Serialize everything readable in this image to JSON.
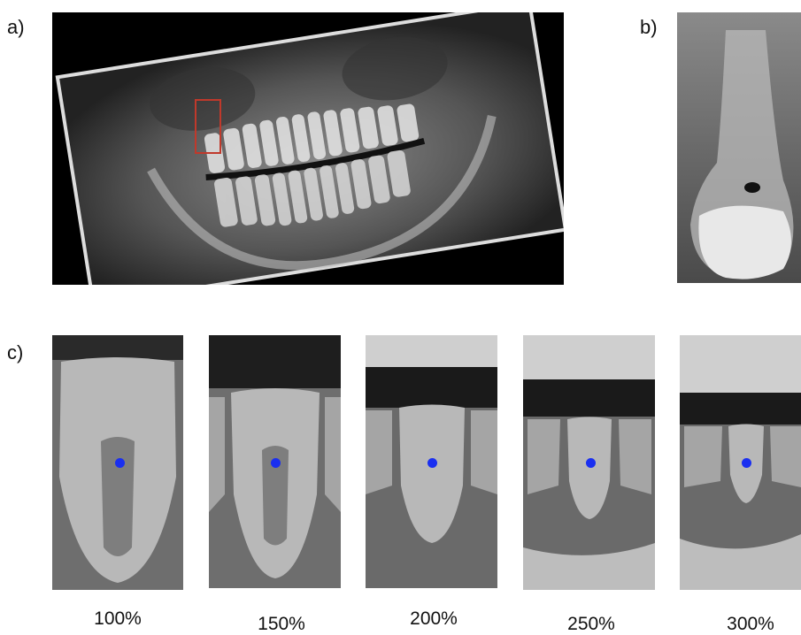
{
  "panels": {
    "a": {
      "label": "a)"
    },
    "b": {
      "label": "b)"
    },
    "c": {
      "label": "c)"
    }
  },
  "zoom_levels": [
    {
      "label": "100%"
    },
    {
      "label": "150%"
    },
    {
      "label": "200%"
    },
    {
      "label": "250%"
    },
    {
      "label": "300%"
    }
  ],
  "colors": {
    "roi_box": "#c0392b",
    "landmark_dot": "#1a2ff0"
  }
}
